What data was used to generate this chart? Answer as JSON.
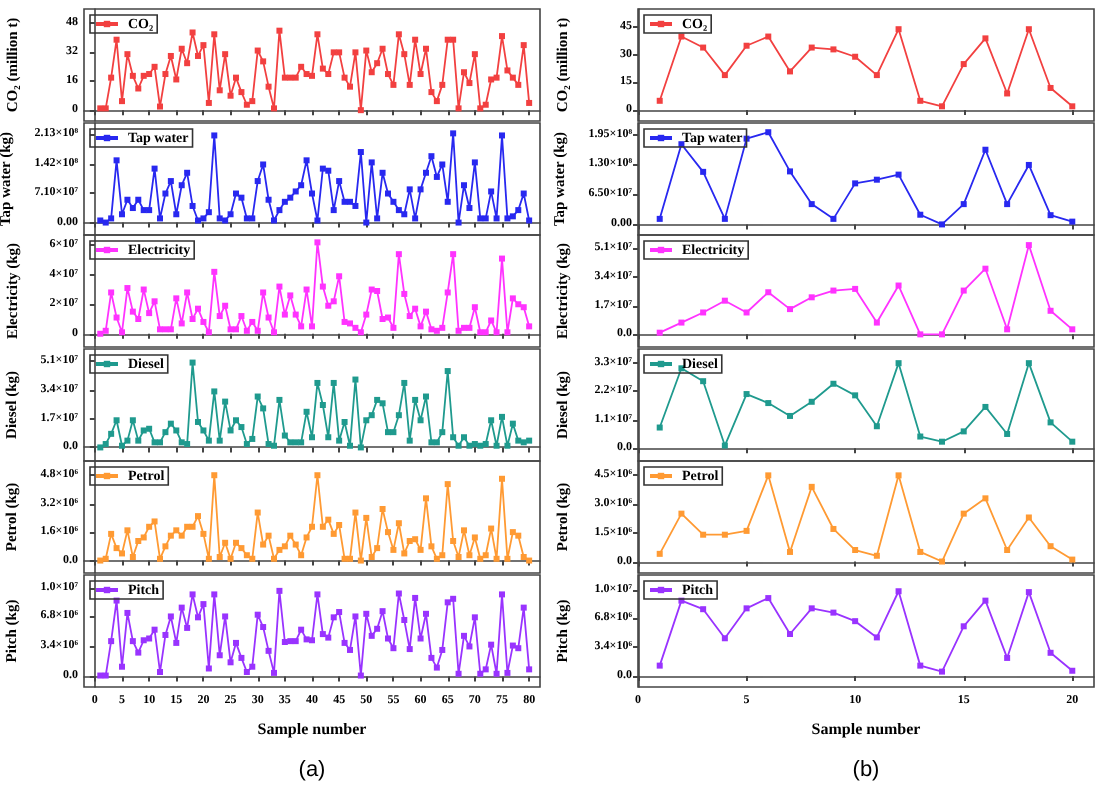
{
  "chart_data": [
    {
      "type": "line",
      "ylabel": "CO₂ (million t)",
      "x": [
        1,
        2,
        3,
        4,
        5,
        6,
        7,
        8,
        9,
        10,
        11,
        12,
        13,
        14,
        15,
        16,
        17,
        18,
        19,
        20,
        21,
        22,
        23,
        24,
        25,
        26,
        27,
        28,
        29,
        30,
        31,
        32,
        33,
        34,
        35,
        36,
        37,
        38,
        39,
        40,
        41,
        42,
        43,
        44,
        45,
        46,
        47,
        48,
        49,
        50,
        51,
        52,
        53,
        54,
        55,
        56,
        57,
        58,
        59,
        60,
        61,
        62,
        63,
        64,
        65,
        66,
        67,
        68,
        69,
        70,
        71,
        72,
        73,
        74,
        75,
        76,
        77,
        78,
        79,
        80
      ],
      "xlim": [
        -2,
        82
      ],
      "xticks": [
        0,
        5,
        10,
        15,
        20,
        25,
        30,
        35,
        40,
        45,
        50,
        55,
        60,
        65,
        70,
        75,
        80
      ],
      "ylim": [
        -6,
        56
      ],
      "yticks": [
        0,
        16,
        32,
        48
      ],
      "legend": "top left",
      "marker": "square",
      "line_style": "solid",
      "tick_labels": "y",
      "series": [
        {
          "name": "CO₂",
          "color": "#f24040",
          "values": [
            1,
            1,
            18,
            39,
            5,
            31,
            19,
            12,
            19,
            20,
            24,
            2,
            20,
            30,
            17,
            34,
            26,
            43,
            30,
            36,
            4,
            42,
            11,
            31,
            8,
            18,
            10,
            3,
            5,
            33,
            27,
            13,
            1,
            44,
            18,
            18,
            18,
            24,
            20,
            19,
            42,
            23,
            20,
            32,
            32,
            18,
            13,
            32,
            0,
            33,
            21,
            26,
            34,
            20,
            14,
            42,
            31,
            14,
            39,
            20,
            34,
            10,
            5,
            14,
            39,
            39,
            1,
            21,
            15,
            31,
            1,
            3,
            17,
            18,
            41,
            22,
            18,
            14,
            36,
            4
          ]
        }
      ]
    },
    {
      "type": "line",
      "ylabel": "Tap water (kg)",
      "x": [
        1,
        2,
        3,
        4,
        5,
        6,
        7,
        8,
        9,
        10,
        11,
        12,
        13,
        14,
        15,
        16,
        17,
        18,
        19,
        20,
        21,
        22,
        23,
        24,
        25,
        26,
        27,
        28,
        29,
        30,
        31,
        32,
        33,
        34,
        35,
        36,
        37,
        38,
        39,
        40,
        41,
        42,
        43,
        44,
        45,
        46,
        47,
        48,
        49,
        50,
        51,
        52,
        53,
        54,
        55,
        56,
        57,
        58,
        59,
        60,
        61,
        62,
        63,
        64,
        65,
        66,
        67,
        68,
        69,
        70,
        71,
        72,
        73,
        74,
        75,
        76,
        77,
        78,
        79,
        80
      ],
      "xlim": [
        -2,
        82
      ],
      "xticks": [
        0,
        5,
        10,
        15,
        20,
        25,
        30,
        35,
        40,
        45,
        50,
        55,
        60,
        65,
        70,
        75,
        80
      ],
      "ylim": [
        -30000000.0,
        240000000.0
      ],
      "yticks": [
        {
          "value": 0,
          "label": "0.00"
        },
        {
          "value": 71000000.0,
          "label": "7.10×10⁷"
        },
        {
          "value": 142000000.0,
          "label": "1.42×10⁸"
        },
        {
          "value": 213000000.0,
          "label": "2.13×10⁸"
        }
      ],
      "legend": "top left",
      "marker": "square",
      "line_style": "solid",
      "tick_labels": "y",
      "series": [
        {
          "name": "Tap water",
          "color": "#2828f0",
          "values": [
            5000000.0,
            0,
            10000000.0,
            150000000.0,
            20000000.0,
            55000000.0,
            35000000.0,
            55000000.0,
            30000000.0,
            30000000.0,
            130000000.0,
            10000000.0,
            70000000.0,
            100000000.0,
            20000000.0,
            90000000.0,
            120000000.0,
            40000000.0,
            5000000.0,
            10000000.0,
            25000000.0,
            210000000.0,
            10000000.0,
            5000000.0,
            20000000.0,
            70000000.0,
            60000000.0,
            10000000.0,
            10000000.0,
            100000000.0,
            140000000.0,
            55000000.0,
            5000000.0,
            30000000.0,
            50000000.0,
            60000000.0,
            75000000.0,
            90000000.0,
            150000000.0,
            70000000.0,
            5000000.0,
            130000000.0,
            125000000.0,
            30000000.0,
            100000000.0,
            50000000.0,
            50000000.0,
            40000000.0,
            170000000.0,
            0,
            145000000.0,
            10000000.0,
            120000000.0,
            70000000.0,
            50000000.0,
            30000000.0,
            20000000.0,
            80000000.0,
            10000000.0,
            80000000.0,
            120000000.0,
            160000000.0,
            110000000.0,
            140000000.0,
            50000000.0,
            215000000.0,
            0,
            90000000.0,
            35000000.0,
            145000000.0,
            10000000.0,
            10000000.0,
            75000000.0,
            10000000.0,
            210000000.0,
            10000000.0,
            15000000.0,
            30000000.0,
            70000000.0,
            5000000.0
          ]
        }
      ]
    },
    {
      "type": "line",
      "ylabel": "Electricity (kg)",
      "x": [
        1,
        2,
        3,
        4,
        5,
        6,
        7,
        8,
        9,
        10,
        11,
        12,
        13,
        14,
        15,
        16,
        17,
        18,
        19,
        20,
        21,
        22,
        23,
        24,
        25,
        26,
        27,
        28,
        29,
        30,
        31,
        32,
        33,
        34,
        35,
        36,
        37,
        38,
        39,
        40,
        41,
        42,
        43,
        44,
        45,
        46,
        47,
        48,
        49,
        50,
        51,
        52,
        53,
        54,
        55,
        56,
        57,
        58,
        59,
        60,
        61,
        62,
        63,
        64,
        65,
        66,
        67,
        68,
        69,
        70,
        71,
        72,
        73,
        74,
        75,
        76,
        77,
        78,
        79,
        80
      ],
      "xlim": [
        -2,
        82
      ],
      "xticks": [
        0,
        5,
        10,
        15,
        20,
        25,
        30,
        35,
        40,
        45,
        50,
        55,
        60,
        65,
        70,
        75,
        80
      ],
      "ylim": [
        -9000000.0,
        67000000.0
      ],
      "yticks": [
        0,
        {
          "value": 20000000.0,
          "label": "2×10⁷"
        },
        {
          "value": 40000000.0,
          "label": "4×10⁷"
        },
        {
          "value": 60000000.0,
          "label": "6×10⁷"
        }
      ],
      "legend": "top left",
      "marker": "square",
      "line_style": "solid",
      "tick_labels": "y",
      "series": [
        {
          "name": "Electricity",
          "color": "#ff33ff",
          "values": [
            0,
            2000000.0,
            28000000.0,
            11000000.0,
            1000000.0,
            31000000.0,
            15000000.0,
            10000000.0,
            30000000.0,
            14000000.0,
            22000000.0,
            3000000.0,
            3000000.0,
            3000000.0,
            24000000.0,
            7000000.0,
            28000000.0,
            10000000.0,
            17000000.0,
            8000000.0,
            1000000.0,
            42000000.0,
            12000000.0,
            19000000.0,
            3000000.0,
            3000000.0,
            12000000.0,
            2000000.0,
            8000000.0,
            2000000.0,
            28000000.0,
            11000000.0,
            1000000.0,
            32000000.0,
            13000000.0,
            26000000.0,
            13000000.0,
            5000000.0,
            30000000.0,
            5000000.0,
            62000000.0,
            32000000.0,
            19000000.0,
            22000000.0,
            39000000.0,
            8000000.0,
            7000000.0,
            4000000.0,
            1000000.0,
            13000000.0,
            30000000.0,
            29000000.0,
            10000000.0,
            11000000.0,
            4000000.0,
            54000000.0,
            27000000.0,
            12000000.0,
            17000000.0,
            5000000.0,
            15000000.0,
            3000000.0,
            2000000.0,
            4000000.0,
            28000000.0,
            54000000.0,
            2000000.0,
            4000000.0,
            4000000.0,
            18000000.0,
            1000000.0,
            1000000.0,
            9000000.0,
            1000000.0,
            51000000.0,
            1000000.0,
            24000000.0,
            20000000.0,
            18000000.0,
            5000000.0
          ]
        }
      ]
    },
    {
      "type": "line",
      "ylabel": "Diesel (kg)",
      "x": [
        1,
        2,
        3,
        4,
        5,
        6,
        7,
        8,
        9,
        10,
        11,
        12,
        13,
        14,
        15,
        16,
        17,
        18,
        19,
        20,
        21,
        22,
        23,
        24,
        25,
        26,
        27,
        28,
        29,
        30,
        31,
        32,
        33,
        34,
        35,
        36,
        37,
        38,
        39,
        40,
        41,
        42,
        43,
        44,
        45,
        46,
        47,
        48,
        49,
        50,
        51,
        52,
        53,
        54,
        55,
        56,
        57,
        58,
        59,
        60,
        61,
        62,
        63,
        64,
        65,
        66,
        67,
        68,
        69,
        70,
        71,
        72,
        73,
        74,
        75,
        76,
        77,
        78,
        79,
        80
      ],
      "xlim": [
        -2,
        82
      ],
      "xticks": [
        0,
        5,
        10,
        15,
        20,
        25,
        30,
        35,
        40,
        45,
        50,
        55,
        60,
        65,
        70,
        75,
        80
      ],
      "ylim": [
        -8000000.0,
        58000000.0
      ],
      "yticks": [
        {
          "value": 0,
          "label": "0.0"
        },
        {
          "value": 17000000.0,
          "label": "1.7×10⁷"
        },
        {
          "value": 34000000.0,
          "label": "3.4×10⁷"
        },
        {
          "value": 51000000.0,
          "label": "5.1×10⁷"
        }
      ],
      "legend": "top left",
      "marker": "square",
      "line_style": "solid",
      "tick_labels": "y",
      "series": [
        {
          "name": "Diesel",
          "color": "#1f9a8e",
          "values": [
            0,
            2000000.0,
            8000000.0,
            16000000.0,
            1000000.0,
            4000000.0,
            16000000.0,
            4000000.0,
            10000000.0,
            11000000.0,
            3000000.0,
            3000000.0,
            9000000.0,
            14000000.0,
            10000000.0,
            3000000.0,
            2000000.0,
            50000000.0,
            15000000.0,
            10000000.0,
            4000000.0,
            33000000.0,
            4000000.0,
            27000000.0,
            10000000.0,
            16000000.0,
            12000000.0,
            2000000.0,
            5000000.0,
            30000000.0,
            23000000.0,
            2000000.0,
            1000000.0,
            28000000.0,
            7000000.0,
            3000000.0,
            3000000.0,
            3000000.0,
            21000000.0,
            6000000.0,
            38000000.0,
            25000000.0,
            6000000.0,
            38000000.0,
            4000000.0,
            15000000.0,
            1000000.0,
            40000000.0,
            0,
            16000000.0,
            19000000.0,
            28000000.0,
            26000000.0,
            9000000.0,
            9000000.0,
            19000000.0,
            38000000.0,
            4000000.0,
            28000000.0,
            16000000.0,
            30000000.0,
            3000000.0,
            3000000.0,
            9000000.0,
            45000000.0,
            6000000.0,
            1000000.0,
            6000000.0,
            1000000.0,
            2000000.0,
            1000000.0,
            2000000.0,
            16000000.0,
            1000000.0,
            18000000.0,
            1000000.0,
            14000000.0,
            4000000.0,
            3000000.0,
            4000000.0
          ]
        }
      ]
    },
    {
      "type": "line",
      "ylabel": "Petrol (kg)",
      "x": [
        1,
        2,
        3,
        4,
        5,
        6,
        7,
        8,
        9,
        10,
        11,
        12,
        13,
        14,
        15,
        16,
        17,
        18,
        19,
        20,
        21,
        22,
        23,
        24,
        25,
        26,
        27,
        28,
        29,
        30,
        31,
        32,
        33,
        34,
        35,
        36,
        37,
        38,
        39,
        40,
        41,
        42,
        43,
        44,
        45,
        46,
        47,
        48,
        49,
        50,
        51,
        52,
        53,
        54,
        55,
        56,
        57,
        58,
        59,
        60,
        61,
        62,
        63,
        64,
        65,
        66,
        67,
        68,
        69,
        70,
        71,
        72,
        73,
        74,
        75,
        76,
        77,
        78,
        79,
        80
      ],
      "xlim": [
        -2,
        82
      ],
      "xticks": [
        0,
        5,
        10,
        15,
        20,
        25,
        30,
        35,
        40,
        45,
        50,
        55,
        60,
        65,
        70,
        75,
        80
      ],
      "ylim": [
        -700000.0,
        5600000.0
      ],
      "yticks": [
        {
          "value": 0,
          "label": "0.0"
        },
        {
          "value": 1600000.0,
          "label": "1.6×10⁶"
        },
        {
          "value": 3200000.0,
          "label": "3.2×10⁶"
        },
        {
          "value": 4800000.0,
          "label": "4.8×10⁶"
        }
      ],
      "legend": "top left",
      "marker": "square",
      "line_style": "solid",
      "tick_labels": "y",
      "series": [
        {
          "name": "Petrol",
          "color": "#ff9a33",
          "values": [
            0,
            100000.0,
            1500000.0,
            700000.0,
            400000.0,
            1700000.0,
            200000.0,
            1100000.0,
            1300000.0,
            1900000.0,
            2200000.0,
            100000.0,
            800000.0,
            1400000.0,
            1700000.0,
            1400000.0,
            1900000.0,
            1900000.0,
            2500000.0,
            1500000.0,
            100000.0,
            4800000.0,
            200000.0,
            1000000.0,
            100000.0,
            1000000.0,
            700000.0,
            300000.0,
            100000.0,
            2700000.0,
            900000.0,
            1400000.0,
            100000.0,
            600000.0,
            800000.0,
            1400000.0,
            900000.0,
            300000.0,
            1300000.0,
            1900000.0,
            4800000.0,
            1900000.0,
            2300000.0,
            1500000.0,
            2000000.0,
            100000.0,
            100000.0,
            2700000.0,
            0,
            2400000.0,
            200000.0,
            700000.0,
            2900000.0,
            1600000.0,
            600000.0,
            2100000.0,
            400000.0,
            1100000.0,
            1200000.0,
            600000.0,
            3500000.0,
            800000.0,
            100000.0,
            300000.0,
            4300000.0,
            1100000.0,
            200000.0,
            1700000.0,
            300000.0,
            1300000.0,
            100000.0,
            300000.0,
            1800000.0,
            100000.0,
            4600000.0,
            100000.0,
            1600000.0,
            1400000.0,
            200000.0,
            0
          ]
        }
      ]
    },
    {
      "type": "line",
      "ylabel": "Pitch (kg)",
      "xlabel": "Sample number",
      "annotations": [
        "(a)"
      ],
      "x": [
        1,
        2,
        3,
        4,
        5,
        6,
        7,
        8,
        9,
        10,
        11,
        12,
        13,
        14,
        15,
        16,
        17,
        18,
        19,
        20,
        21,
        22,
        23,
        24,
        25,
        26,
        27,
        28,
        29,
        30,
        31,
        32,
        33,
        34,
        35,
        36,
        37,
        38,
        39,
        40,
        41,
        42,
        43,
        44,
        45,
        46,
        47,
        48,
        49,
        50,
        51,
        52,
        53,
        54,
        55,
        56,
        57,
        58,
        59,
        60,
        61,
        62,
        63,
        64,
        65,
        66,
        67,
        68,
        69,
        70,
        71,
        72,
        73,
        74,
        75,
        76,
        77,
        78,
        79,
        80
      ],
      "xlim": [
        -2,
        82
      ],
      "xticks": [
        0,
        5,
        10,
        15,
        20,
        25,
        30,
        35,
        40,
        45,
        50,
        55,
        60,
        65,
        70,
        75,
        80
      ],
      "ylim": [
        -1200000.0,
        11500000.0
      ],
      "yticks": [
        {
          "value": 0,
          "label": "0.0"
        },
        {
          "value": 3400000.0,
          "label": "3.4×10⁶"
        },
        {
          "value": 6800000.0,
          "label": "6.8×10⁶"
        },
        {
          "value": 10000000.0,
          "label": "1.0×10⁷"
        }
      ],
      "legend": "top left",
      "marker": "square",
      "line_style": "solid",
      "series": [
        {
          "name": "Pitch",
          "color": "#9933ff",
          "values": [
            100000.0,
            100000.0,
            4000000.0,
            8600000.0,
            1100000.0,
            7200000.0,
            4000000.0,
            2700000.0,
            4100000.0,
            4300000.0,
            5300000.0,
            500000.0,
            4700000.0,
            6800000.0,
            3800000.0,
            7800000.0,
            5500000.0,
            9300000.0,
            6700000.0,
            8200000.0,
            900000.0,
            9300000.0,
            2400000.0,
            6800000.0,
            1600000.0,
            3800000.0,
            2100000.0,
            500000.0,
            1100000.0,
            7000000.0,
            5600000.0,
            2900000.0,
            400000.0,
            9700000.0,
            3900000.0,
            4000000.0,
            4000000.0,
            5300000.0,
            4200000.0,
            4100000.0,
            9300000.0,
            4800000.0,
            4400000.0,
            6700000.0,
            7300000.0,
            3800000.0,
            3000000.0,
            6800000.0,
            100000.0,
            7100000.0,
            4600000.0,
            5400000.0,
            7400000.0,
            4300000.0,
            3200000.0,
            9400000.0,
            6400000.0,
            3100000.0,
            8900000.0,
            4300000.0,
            7100000.0,
            2100000.0,
            1000000.0,
            3000000.0,
            8400000.0,
            8800000.0,
            300000.0,
            4600000.0,
            3400000.0,
            6700000.0,
            300000.0,
            800000.0,
            3600000.0,
            300000.0,
            9300000.0,
            400000.0,
            3500000.0,
            3200000.0,
            7800000.0,
            800000.0
          ]
        }
      ]
    },
    {
      "type": "line",
      "ylabel": "CO₂ (million t)",
      "x": [
        1,
        2,
        3,
        4,
        5,
        6,
        7,
        8,
        9,
        10,
        11,
        12,
        13,
        14,
        15,
        16,
        17,
        18,
        19,
        20
      ],
      "xlim": [
        0,
        21
      ],
      "xticks": [
        0,
        5,
        10,
        15,
        20
      ],
      "ylim": [
        -6,
        55
      ],
      "yticks": [
        0,
        15,
        30,
        45
      ],
      "legend": "top left",
      "marker": "square",
      "line_style": "solid",
      "tick_labels": "y",
      "series": [
        {
          "name": "CO₂",
          "color": "#f24040",
          "values": [
            5,
            40,
            34,
            19,
            35,
            40,
            21,
            34,
            33,
            29,
            19,
            44,
            5,
            2,
            25,
            39,
            9,
            44,
            12,
            2
          ]
        }
      ]
    },
    {
      "type": "line",
      "ylabel": "Tap water (kg)",
      "x": [
        1,
        2,
        3,
        4,
        5,
        6,
        7,
        8,
        9,
        10,
        11,
        12,
        13,
        14,
        15,
        16,
        17,
        18,
        19,
        20
      ],
      "xlim": [
        0,
        21
      ],
      "xticks": [
        0,
        5,
        10,
        15,
        20
      ],
      "ylim": [
        -23000000.0,
        220000000.0
      ],
      "yticks": [
        {
          "value": 0,
          "label": "0.00"
        },
        {
          "value": 65000000.0,
          "label": "6.50×10⁷"
        },
        {
          "value": 130000000.0,
          "label": "1.30×10⁸"
        },
        {
          "value": 195000000.0,
          "label": "1.95×10⁸"
        }
      ],
      "legend": "top left",
      "marker": "square",
      "line_style": "solid",
      "tick_labels": "y",
      "series": [
        {
          "name": "Tap water",
          "color": "#2828f0",
          "values": [
            12000000.0,
            174000000.0,
            114000000.0,
            12000000.0,
            186000000.0,
            200000000.0,
            115000000.0,
            44000000.0,
            12000000.0,
            89000000.0,
            97000000.0,
            108000000.0,
            21000000.0,
            0,
            44000000.0,
            162000000.0,
            44000000.0,
            129000000.0,
            20000000.0,
            6000000.0
          ]
        }
      ]
    },
    {
      "type": "line",
      "ylabel": "Electricity (kg)",
      "x": [
        1,
        2,
        3,
        4,
        5,
        6,
        7,
        8,
        9,
        10,
        11,
        12,
        13,
        14,
        15,
        16,
        17,
        18,
        19,
        20
      ],
      "xlim": [
        0,
        21
      ],
      "xticks": [
        0,
        5,
        10,
        15,
        20
      ],
      "ylim": [
        -7500000.0,
        59000000.0
      ],
      "yticks": [
        {
          "value": 0,
          "label": "0.0"
        },
        {
          "value": 17000000.0,
          "label": "1.7×10⁷"
        },
        {
          "value": 34000000.0,
          "label": "3.4×10⁷"
        },
        {
          "value": 51000000.0,
          "label": "5.1×10⁷"
        }
      ],
      "legend": "top left",
      "marker": "square",
      "line_style": "solid",
      "tick_labels": "y",
      "series": [
        {
          "name": "Electricity",
          "color": "#ff33ff",
          "values": [
            1000000.0,
            7000000.0,
            13000000.0,
            20000000.0,
            13000000.0,
            25000000.0,
            15000000.0,
            22000000.0,
            26000000.0,
            27000000.0,
            7000000.0,
            29000000.0,
            0,
            0,
            26000000.0,
            39000000.0,
            3000000.0,
            53000000.0,
            14000000.0,
            3000000.0
          ]
        }
      ]
    },
    {
      "type": "line",
      "ylabel": "Diesel (kg)",
      "x": [
        1,
        2,
        3,
        4,
        5,
        6,
        7,
        8,
        9,
        10,
        11,
        12,
        13,
        14,
        15,
        16,
        17,
        18,
        19,
        20
      ],
      "xlim": [
        0,
        21
      ],
      "xticks": [
        0,
        5,
        10,
        15,
        20
      ],
      "ylim": [
        -5000000.0,
        38500000.0
      ],
      "yticks": [
        {
          "value": 0,
          "label": "0.0"
        },
        {
          "value": 11000000.0,
          "label": "1.1×10⁷"
        },
        {
          "value": 22000000.0,
          "label": "2.2×10⁷"
        },
        {
          "value": 33000000.0,
          "label": "3.3×10⁷"
        }
      ],
      "legend": "top left",
      "marker": "square",
      "line_style": "solid",
      "tick_labels": "y",
      "series": [
        {
          "name": "Diesel",
          "color": "#1f9a8e",
          "values": [
            8000000.0,
            31000000.0,
            26000000.0,
            1000000.0,
            21000000.0,
            17500000.0,
            12500000.0,
            18000000.0,
            25000000.0,
            20500000.0,
            8500000.0,
            33000000.0,
            4500000.0,
            2500000.0,
            6500000.0,
            16000000.0,
            5500000.0,
            33000000.0,
            10000000.0,
            2500000.0
          ]
        }
      ]
    },
    {
      "type": "line",
      "ylabel": "Petrol (kg)",
      "x": [
        1,
        2,
        3,
        4,
        5,
        6,
        7,
        8,
        9,
        10,
        11,
        12,
        13,
        14,
        15,
        16,
        17,
        18,
        19,
        20
      ],
      "xlim": [
        0,
        21
      ],
      "xticks": [
        0,
        5,
        10,
        15,
        20
      ],
      "ylim": [
        -600000.0,
        5250000.0
      ],
      "yticks": [
        {
          "value": 0,
          "label": "0.0"
        },
        {
          "value": 1500000.0,
          "label": "1.5×10⁶"
        },
        {
          "value": 3000000.0,
          "label": "3.0×10⁶"
        },
        {
          "value": 4500000.0,
          "label": "4.5×10⁶"
        }
      ],
      "legend": "top left",
      "marker": "square",
      "line_style": "solid",
      "tick_labels": "y",
      "series": [
        {
          "name": "Petrol",
          "color": "#ff9a33",
          "values": [
            400000.0,
            2500000.0,
            1400000.0,
            1400000.0,
            1600000.0,
            4500000.0,
            500000.0,
            3900000.0,
            1700000.0,
            600000.0,
            300000.0,
            4500000.0,
            500000.0,
            0,
            2500000.0,
            3300000.0,
            600000.0,
            2300000.0,
            800000.0,
            100000.0
          ]
        }
      ]
    },
    {
      "type": "line",
      "ylabel": "Pitch (kg)",
      "xlabel": "Sample number",
      "annotations": [
        "(b)"
      ],
      "x": [
        1,
        2,
        3,
        4,
        5,
        6,
        7,
        8,
        9,
        10,
        11,
        12,
        13,
        14,
        15,
        16,
        17,
        18,
        19,
        20
      ],
      "xlim": [
        0,
        21
      ],
      "xticks": [
        0,
        5,
        10,
        15,
        20
      ],
      "ylim": [
        -1300000.0,
        11800000.0
      ],
      "yticks": [
        {
          "value": 0,
          "label": "0.0"
        },
        {
          "value": 3400000.0,
          "label": "3.4×10⁶"
        },
        {
          "value": 6800000.0,
          "label": "6.8×10⁶"
        },
        {
          "value": 10000000.0,
          "label": "1.0×10⁷"
        }
      ],
      "legend": "top left",
      "marker": "square",
      "line_style": "solid",
      "series": [
        {
          "name": "Pitch",
          "color": "#9933ff",
          "values": [
            1200000.0,
            8800000.0,
            7800000.0,
            4400000.0,
            7900000.0,
            9100000.0,
            4900000.0,
            7900000.0,
            7400000.0,
            6400000.0,
            4500000.0,
            9900000.0,
            1200000.0,
            500000.0,
            5800000.0,
            8800000.0,
            2100000.0,
            9800000.0,
            2700000.0,
            600000.0
          ]
        }
      ]
    }
  ]
}
